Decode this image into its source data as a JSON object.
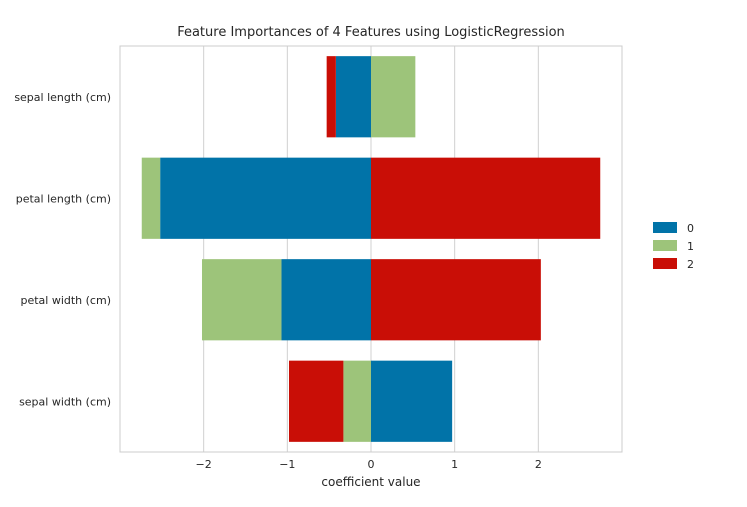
{
  "chart_data": {
    "type": "bar",
    "orientation": "horizontal",
    "stacking": "diverging",
    "title": "Feature Importances of 4 Features using LogisticRegression",
    "xlabel": "coefficient value",
    "ylabel": "",
    "categories": [
      "sepal length (cm)",
      "petal length (cm)",
      "petal width (cm)",
      "sepal width (cm)"
    ],
    "series": [
      {
        "name": "0",
        "color": "#0173a8",
        "values": [
          -0.42,
          -2.52,
          -1.07,
          0.97
        ]
      },
      {
        "name": "1",
        "color": "#9dc47a",
        "values": [
          0.53,
          -0.22,
          -0.95,
          -0.33
        ]
      },
      {
        "name": "2",
        "color": "#c90e06",
        "values": [
          -0.11,
          2.74,
          2.03,
          -0.65
        ]
      }
    ],
    "xlim": [
      -3.0,
      3.0
    ],
    "xticks": [
      -2,
      -1,
      0,
      1,
      2
    ],
    "xtick_labels": [
      "−2",
      "−1",
      "0",
      "1",
      "2"
    ],
    "grid": "vertical",
    "legend_position": "right"
  }
}
